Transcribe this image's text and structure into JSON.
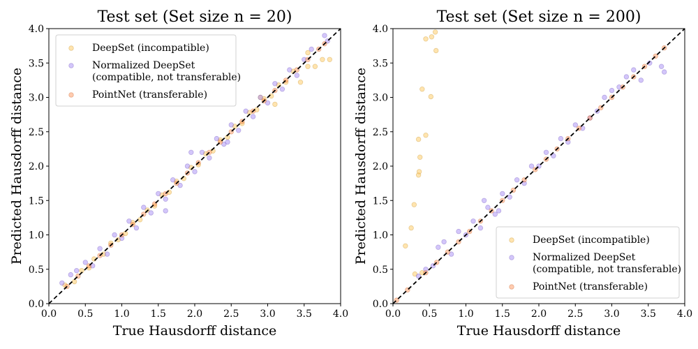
{
  "chart_data": [
    {
      "type": "scatter",
      "title": "Test set (Set size n = 20)",
      "xlabel": "True Hausdorff distance",
      "ylabel": "Predicted Hausdorff distance",
      "xlim": [
        0.0,
        4.0
      ],
      "ylim": [
        0.0,
        4.0
      ],
      "xticks": [
        "0.0",
        "0.5",
        "1.0",
        "1.5",
        "2.0",
        "2.5",
        "3.0",
        "3.5",
        "4.0"
      ],
      "yticks": [
        "0.0",
        "0.5",
        "1.0",
        "1.5",
        "2.0",
        "2.5",
        "3.0",
        "3.5",
        "4.0"
      ],
      "reference_line": "y = x (dashed black)",
      "legend_position": "upper-left",
      "series": [
        {
          "name": "DeepSet (incompatible)",
          "color": "#ffc44d",
          "points": [
            [
              0.22,
              0.27
            ],
            [
              0.35,
              0.32
            ],
            [
              0.45,
              0.48
            ],
            [
              0.55,
              0.52
            ],
            [
              0.62,
              0.65
            ],
            [
              0.75,
              0.72
            ],
            [
              0.85,
              0.88
            ],
            [
              0.95,
              0.93
            ],
            [
              1.05,
              1.02
            ],
            [
              1.15,
              1.18
            ],
            [
              1.25,
              1.22
            ],
            [
              1.35,
              1.36
            ],
            [
              1.45,
              1.42
            ],
            [
              1.55,
              1.58
            ],
            [
              1.65,
              1.62
            ],
            [
              1.75,
              1.78
            ],
            [
              1.85,
              1.82
            ],
            [
              1.95,
              1.98
            ],
            [
              2.05,
              2.02
            ],
            [
              2.15,
              2.18
            ],
            [
              2.25,
              2.22
            ],
            [
              2.35,
              2.38
            ],
            [
              2.45,
              2.42
            ],
            [
              2.55,
              2.58
            ],
            [
              2.65,
              2.62
            ],
            [
              2.75,
              2.78
            ],
            [
              2.85,
              2.82
            ],
            [
              2.95,
              2.98
            ],
            [
              3.05,
              3.02
            ],
            [
              3.15,
              3.18
            ],
            [
              3.25,
              3.22
            ],
            [
              3.35,
              3.38
            ],
            [
              3.45,
              3.22
            ],
            [
              3.55,
              3.65
            ],
            [
              3.65,
              3.45
            ],
            [
              3.75,
              3.55
            ],
            [
              3.85,
              3.55
            ],
            [
              3.55,
              3.45
            ],
            [
              3.1,
              2.9
            ],
            [
              2.9,
              3.0
            ]
          ]
        },
        {
          "name": "Normalized DeepSet\n(compatible, not transferable)",
          "color": "#9d80f5",
          "points": [
            [
              0.18,
              0.3
            ],
            [
              0.3,
              0.42
            ],
            [
              0.38,
              0.48
            ],
            [
              0.5,
              0.6
            ],
            [
              0.6,
              0.55
            ],
            [
              0.7,
              0.8
            ],
            [
              0.8,
              0.72
            ],
            [
              0.9,
              1.0
            ],
            [
              1.0,
              0.95
            ],
            [
              1.1,
              1.2
            ],
            [
              1.2,
              1.1
            ],
            [
              1.3,
              1.4
            ],
            [
              1.4,
              1.32
            ],
            [
              1.5,
              1.6
            ],
            [
              1.6,
              1.52
            ],
            [
              1.7,
              1.8
            ],
            [
              1.8,
              1.72
            ],
            [
              1.9,
              2.0
            ],
            [
              2.0,
              1.92
            ],
            [
              2.1,
              2.2
            ],
            [
              2.2,
              2.12
            ],
            [
              2.3,
              2.4
            ],
            [
              2.4,
              2.32
            ],
            [
              2.5,
              2.6
            ],
            [
              2.6,
              2.52
            ],
            [
              2.7,
              2.8
            ],
            [
              2.8,
              2.72
            ],
            [
              2.9,
              3.0
            ],
            [
              3.0,
              2.92
            ],
            [
              3.1,
              3.2
            ],
            [
              3.2,
              3.12
            ],
            [
              3.3,
              3.4
            ],
            [
              3.4,
              3.32
            ],
            [
              3.5,
              3.55
            ],
            [
              3.6,
              3.7
            ],
            [
              3.78,
              3.9
            ],
            [
              3.82,
              3.82
            ],
            [
              1.6,
              1.35
            ],
            [
              1.95,
              2.2
            ],
            [
              2.45,
              2.35
            ]
          ]
        },
        {
          "name": "PointNet (transferable)",
          "color": "#ff8c4d",
          "points": [
            [
              0.25,
              0.25
            ],
            [
              0.4,
              0.4
            ],
            [
              0.55,
              0.55
            ],
            [
              0.7,
              0.7
            ],
            [
              0.85,
              0.85
            ],
            [
              1.0,
              1.0
            ],
            [
              1.15,
              1.15
            ],
            [
              1.3,
              1.3
            ],
            [
              1.45,
              1.45
            ],
            [
              1.6,
              1.6
            ],
            [
              1.75,
              1.75
            ],
            [
              1.9,
              1.9
            ],
            [
              2.05,
              2.05
            ],
            [
              2.2,
              2.2
            ],
            [
              2.35,
              2.35
            ],
            [
              2.5,
              2.5
            ],
            [
              2.65,
              2.65
            ],
            [
              2.8,
              2.8
            ],
            [
              2.95,
              2.95
            ],
            [
              3.1,
              3.1
            ],
            [
              3.25,
              3.25
            ],
            [
              3.4,
              3.4
            ],
            [
              3.55,
              3.55
            ],
            [
              3.7,
              3.7
            ],
            [
              3.78,
              3.78
            ]
          ]
        }
      ]
    },
    {
      "type": "scatter",
      "title": "Test set (Set size n = 200)",
      "xlabel": "True Hausdorff distance",
      "ylabel": "Predicted Hausdorff distance",
      "xlim": [
        0.0,
        4.0
      ],
      "ylim": [
        0.0,
        4.0
      ],
      "xticks": [
        "0.0",
        "0.5",
        "1.0",
        "1.5",
        "2.0",
        "2.5",
        "3.0",
        "3.5",
        "4.0"
      ],
      "yticks": [
        "0.0",
        "0.5",
        "1.0",
        "1.5",
        "2.0",
        "2.5",
        "3.0",
        "3.5",
        "4.0"
      ],
      "reference_line": "y = x (dashed black)",
      "legend_position": "lower-right",
      "series": [
        {
          "name": "DeepSet (incompatible)",
          "color": "#ffc44d",
          "points": [
            [
              0.17,
              0.84
            ],
            [
              0.25,
              1.1
            ],
            [
              0.29,
              1.44
            ],
            [
              0.35,
              1.87
            ],
            [
              0.36,
              1.92
            ],
            [
              0.37,
              2.13
            ],
            [
              0.35,
              2.39
            ],
            [
              0.45,
              2.45
            ],
            [
              0.4,
              3.12
            ],
            [
              0.52,
              3.01
            ],
            [
              0.45,
              3.85
            ],
            [
              0.53,
              3.88
            ],
            [
              0.58,
              3.95
            ],
            [
              0.59,
              3.68
            ],
            [
              0.3,
              0.43
            ],
            [
              0.4,
              0.45
            ]
          ]
        },
        {
          "name": "Normalized DeepSet\n(compatible, not transferable)",
          "color": "#9d80f5",
          "points": [
            [
              0.35,
              0.4
            ],
            [
              0.45,
              0.5
            ],
            [
              0.55,
              0.55
            ],
            [
              0.62,
              0.82
            ],
            [
              0.7,
              0.9
            ],
            [
              0.8,
              0.72
            ],
            [
              0.9,
              1.05
            ],
            [
              1.0,
              1.0
            ],
            [
              1.1,
              1.2
            ],
            [
              1.2,
              1.1
            ],
            [
              1.3,
              1.4
            ],
            [
              1.4,
              1.3
            ],
            [
              1.5,
              1.6
            ],
            [
              1.6,
              1.55
            ],
            [
              1.7,
              1.8
            ],
            [
              1.8,
              1.75
            ],
            [
              1.9,
              2.0
            ],
            [
              2.0,
              2.0
            ],
            [
              2.1,
              2.2
            ],
            [
              2.2,
              2.15
            ],
            [
              2.3,
              2.4
            ],
            [
              2.4,
              2.35
            ],
            [
              2.5,
              2.6
            ],
            [
              2.6,
              2.55
            ],
            [
              2.7,
              2.7
            ],
            [
              2.8,
              2.8
            ],
            [
              2.9,
              3.0
            ],
            [
              3.0,
              3.1
            ],
            [
              3.1,
              3.15
            ],
            [
              3.2,
              3.3
            ],
            [
              3.3,
              3.4
            ],
            [
              3.4,
              3.25
            ],
            [
              3.52,
              3.5
            ],
            [
              3.68,
              3.45
            ],
            [
              3.72,
              3.37
            ],
            [
              1.25,
              1.5
            ],
            [
              1.45,
              1.35
            ]
          ]
        },
        {
          "name": "PointNet (transferable)",
          "color": "#ff8c4d",
          "points": [
            [
              0.05,
              0.05
            ],
            [
              0.2,
              0.2
            ],
            [
              0.45,
              0.45
            ],
            [
              0.6,
              0.6
            ],
            [
              0.75,
              0.75
            ],
            [
              0.9,
              0.9
            ],
            [
              1.05,
              1.05
            ],
            [
              1.2,
              1.2
            ],
            [
              1.35,
              1.35
            ],
            [
              1.5,
              1.5
            ],
            [
              1.65,
              1.65
            ],
            [
              1.8,
              1.8
            ],
            [
              1.95,
              1.95
            ],
            [
              2.1,
              2.1
            ],
            [
              2.25,
              2.25
            ],
            [
              2.4,
              2.4
            ],
            [
              2.55,
              2.55
            ],
            [
              2.7,
              2.7
            ],
            [
              2.85,
              2.85
            ],
            [
              3.0,
              3.0
            ],
            [
              3.15,
              3.15
            ],
            [
              3.3,
              3.3
            ],
            [
              3.45,
              3.45
            ],
            [
              3.6,
              3.6
            ],
            [
              3.72,
              3.72
            ]
          ]
        }
      ]
    }
  ]
}
